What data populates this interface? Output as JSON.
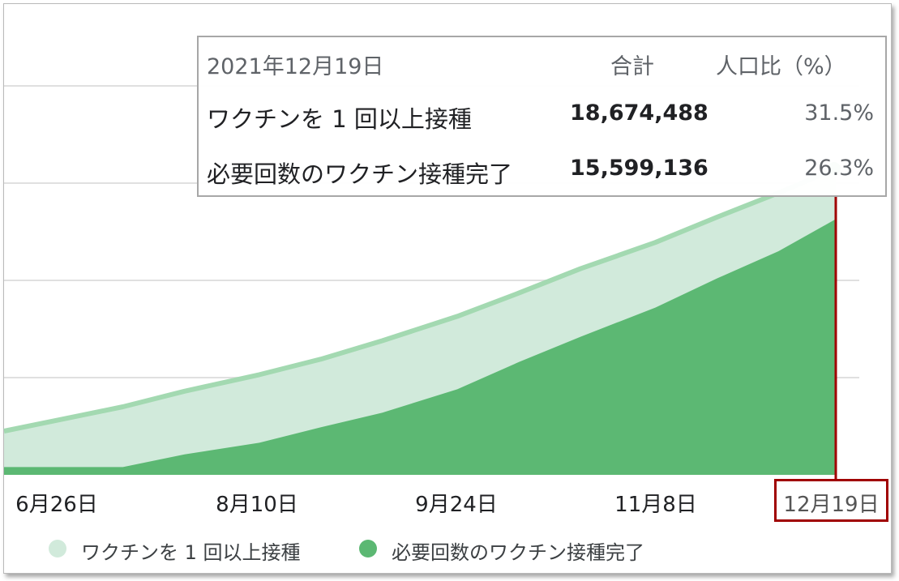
{
  "tooltip": {
    "date": "2021年12月19日",
    "header_total": "合計",
    "header_ratio": "人口比（%）",
    "rows": [
      {
        "label": "ワクチンを 1 回以上接種",
        "total": "18,674,488",
        "ratio": "31.5%"
      },
      {
        "label": "必要回数のワクチン接種完了",
        "total": "15,599,136",
        "ratio": "26.3%"
      }
    ]
  },
  "colors": {
    "one_dose_fill": "#d1eadb",
    "one_dose_line": "#a3d9b1",
    "complete_fill": "#5cb873",
    "gridline": "#e0e0e0",
    "highlight": "#a00000"
  },
  "chart_data": {
    "type": "area",
    "x_tick_labels": [
      "6月26日",
      "8月10日",
      "9月24日",
      "11月8日",
      "12月19日"
    ],
    "x_range": [
      "2021-06-13",
      "2021-12-19"
    ],
    "selected_date": "12月19日",
    "gridlines": true,
    "legend_position": "bottom",
    "series": [
      {
        "name": "ワクチンを 1 回以上接種",
        "x": [
          "2021-06-13",
          "2021-06-26",
          "2021-07-10",
          "2021-07-24",
          "2021-08-10",
          "2021-08-24",
          "2021-09-07",
          "2021-09-24",
          "2021-10-08",
          "2021-10-22",
          "2021-11-08",
          "2021-11-22",
          "2021-12-06",
          "2021-12-19"
        ],
        "values": [
          4.5,
          5.7,
          7.0,
          8.6,
          10.3,
          11.9,
          13.8,
          16.3,
          18.7,
          21.2,
          23.9,
          26.5,
          29.0,
          31.5
        ]
      },
      {
        "name": "必要回数のワクチン接種完了",
        "x": [
          "2021-06-13",
          "2021-06-26",
          "2021-07-10",
          "2021-07-24",
          "2021-08-10",
          "2021-08-24",
          "2021-09-07",
          "2021-09-24",
          "2021-10-08",
          "2021-10-22",
          "2021-11-08",
          "2021-11-22",
          "2021-12-06",
          "2021-12-19"
        ],
        "values": [
          0.8,
          0.8,
          0.8,
          2.1,
          3.3,
          4.9,
          6.4,
          8.8,
          11.6,
          14.2,
          17.2,
          20.2,
          23.0,
          26.3
        ]
      }
    ]
  }
}
